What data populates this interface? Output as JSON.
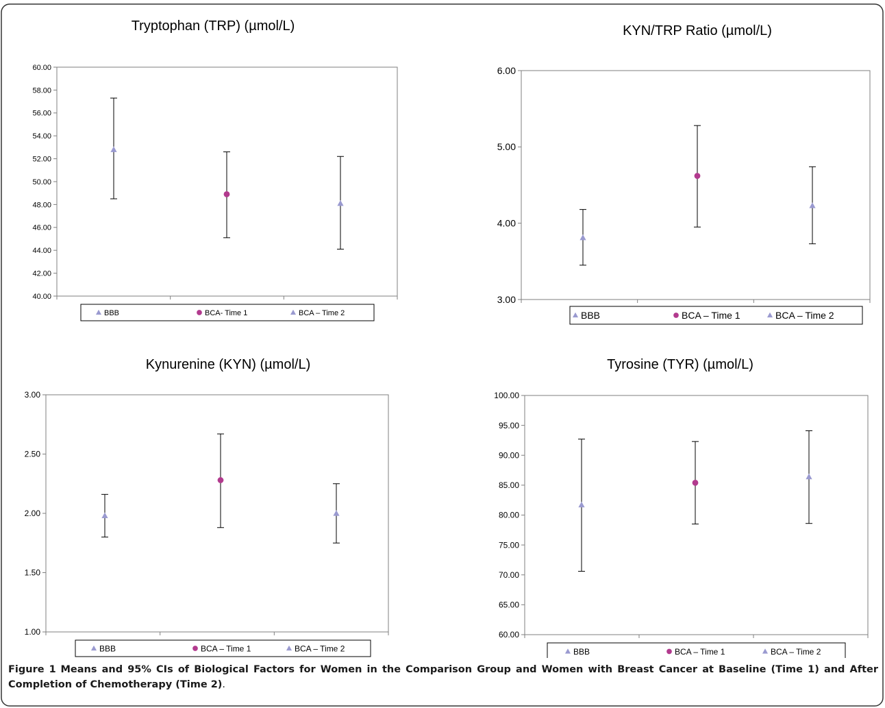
{
  "caption": {
    "label": "Figure 1",
    "text": "Means and 95% CIs of Biological Factors for Women in the Comparison Group and Women with Breast Cancer at Baseline (Time 1) and After Completion of Chemotherapy (Time 2)",
    "end": "."
  },
  "colors": {
    "triangle": "#9a9ad0",
    "circle": "#b23a8e",
    "axis": "#7f7f7f",
    "errorbar": "#000000",
    "frame": "#333333"
  },
  "chart_data": [
    {
      "type": "scatter",
      "title": "Tryptophan (TRP) (µmol/L)",
      "categories": [
        "BBB",
        "BCA- Time 1",
        "BCA – Time 2"
      ],
      "markers": [
        "triangle",
        "circle",
        "triangle"
      ],
      "values": [
        52.8,
        48.9,
        48.1
      ],
      "ci_low": [
        48.5,
        45.1,
        44.1
      ],
      "ci_high": [
        57.3,
        52.6,
        52.2
      ],
      "ylim": [
        40,
        60
      ],
      "yticks": [
        "40.00",
        "42.00",
        "44.00",
        "46.00",
        "48.00",
        "50.00",
        "52.00",
        "54.00",
        "56.00",
        "58.00",
        "60.00"
      ],
      "grid": false,
      "legend": "bottom"
    },
    {
      "type": "scatter",
      "title": "KYN/TRP Ratio (µmol/L)",
      "categories": [
        "BBB",
        "BCA – Time 1",
        "BCA – Time 2"
      ],
      "markers": [
        "triangle",
        "circle",
        "triangle"
      ],
      "values": [
        3.81,
        4.62,
        4.23
      ],
      "ci_low": [
        3.45,
        3.95,
        3.73
      ],
      "ci_high": [
        4.18,
        5.28,
        4.74
      ],
      "ylim": [
        3,
        6
      ],
      "yticks": [
        "3.00",
        "4.00",
        "5.00",
        "6.00"
      ],
      "grid": false,
      "legend": "bottom"
    },
    {
      "type": "scatter",
      "title": "Kynurenine (KYN) (µmol/L)",
      "categories": [
        "BBB",
        "BCA – Time 1",
        "BCA – Time 2"
      ],
      "markers": [
        "triangle",
        "circle",
        "triangle"
      ],
      "values": [
        1.98,
        2.28,
        2.0
      ],
      "ci_low": [
        1.8,
        1.88,
        1.75
      ],
      "ci_high": [
        2.16,
        2.67,
        2.25
      ],
      "ylim": [
        1,
        3
      ],
      "yticks": [
        "1.00",
        "1.50",
        "2.00",
        "2.50",
        "3.00"
      ],
      "grid": false,
      "legend": "bottom"
    },
    {
      "type": "scatter",
      "title": "Tyrosine (TYR) (µmol/L)",
      "categories": [
        "BBB",
        "BCA – Time 1",
        "BCA – Time 2"
      ],
      "markers": [
        "triangle",
        "circle",
        "triangle"
      ],
      "values": [
        81.7,
        85.4,
        86.4
      ],
      "ci_low": [
        70.6,
        78.5,
        78.6
      ],
      "ci_high": [
        92.7,
        92.3,
        94.1
      ],
      "ylim": [
        60,
        100
      ],
      "yticks": [
        "60.00",
        "65.00",
        "70.00",
        "75.00",
        "80.00",
        "85.00",
        "90.00",
        "95.00",
        "100.00"
      ],
      "grid": false,
      "legend": "bottom"
    }
  ]
}
